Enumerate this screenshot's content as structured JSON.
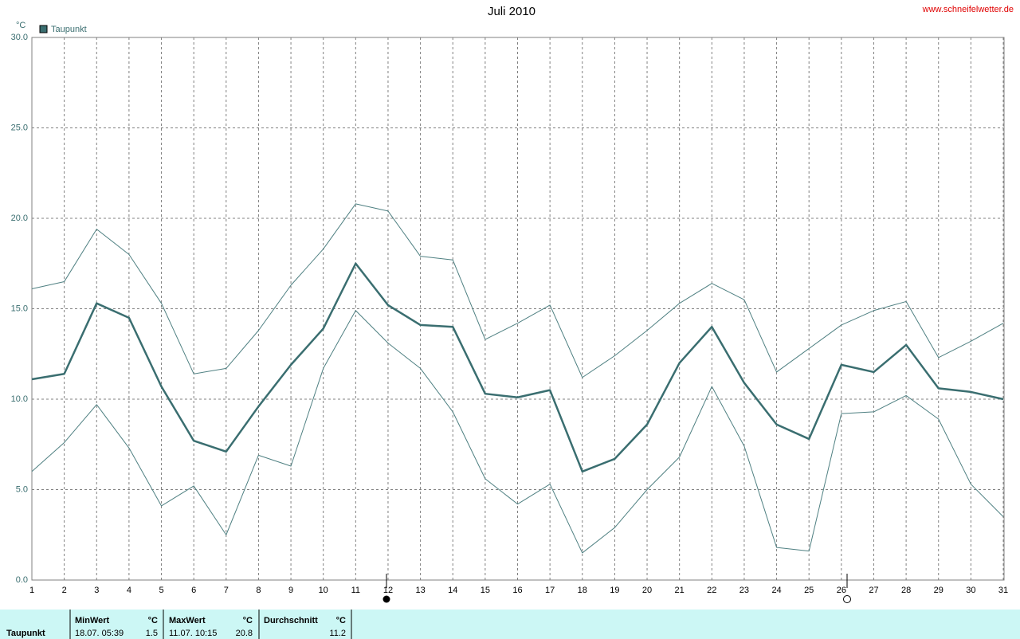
{
  "chart_data": {
    "type": "line",
    "title": "Juli 2010",
    "source": "www.schneifelwetter.de",
    "y_unit": "°C",
    "x": [
      1,
      2,
      3,
      4,
      5,
      6,
      7,
      8,
      9,
      10,
      11,
      12,
      13,
      14,
      15,
      16,
      17,
      18,
      19,
      20,
      21,
      22,
      23,
      24,
      25,
      26,
      27,
      28,
      29,
      30,
      31
    ],
    "xlim": [
      1,
      31
    ],
    "xticks": [
      1,
      2,
      3,
      4,
      5,
      6,
      7,
      8,
      9,
      10,
      11,
      12,
      13,
      14,
      15,
      16,
      17,
      18,
      19,
      20,
      21,
      22,
      23,
      24,
      25,
      26,
      27,
      28,
      29,
      30,
      31
    ],
    "ylim": [
      0,
      30
    ],
    "yticks": [
      {
        "value": 0,
        "label": "0.0"
      },
      {
        "value": 5,
        "label": "5.0"
      },
      {
        "value": 10,
        "label": "10.0"
      },
      {
        "value": 15,
        "label": "15.0"
      },
      {
        "value": 20,
        "label": "20.0"
      },
      {
        "value": 25,
        "label": "25.0"
      },
      {
        "value": 30,
        "label": "30.0"
      }
    ],
    "grid": true,
    "series": [
      {
        "name": "Taupunkt",
        "color": "#3a6e70",
        "values": [
          11.1,
          11.4,
          15.3,
          14.5,
          10.7,
          7.7,
          7.1,
          9.6,
          11.9,
          13.9,
          17.5,
          15.2,
          14.1,
          14.0,
          10.3,
          10.1,
          10.5,
          6.0,
          6.7,
          8.6,
          12.0,
          14.0,
          10.9,
          8.6,
          7.8,
          11.9,
          11.5,
          13.0,
          10.6,
          10.4,
          10.0
        ]
      },
      {
        "color": "#4f8082",
        "values": [
          16.1,
          16.5,
          19.4,
          18.0,
          15.3,
          11.4,
          11.7,
          13.8,
          16.3,
          18.3,
          20.8,
          20.4,
          17.9,
          17.7,
          13.3,
          14.2,
          15.2,
          11.2,
          12.4,
          13.8,
          15.3,
          16.4,
          15.5,
          11.5,
          12.8,
          14.1,
          14.9,
          15.4,
          12.3,
          13.2,
          14.2
        ]
      },
      {
        "color": "#4f8082",
        "values": [
          6.0,
          7.6,
          9.7,
          7.3,
          4.1,
          5.2,
          2.5,
          6.9,
          6.3,
          11.7,
          14.9,
          13.1,
          11.7,
          9.3,
          5.6,
          4.2,
          5.3,
          1.5,
          2.9,
          5.0,
          6.8,
          10.7,
          7.4,
          1.8,
          1.6,
          9.2,
          9.3,
          10.2,
          8.9,
          5.3,
          3.5
        ]
      }
    ]
  },
  "stats_table": {
    "row_label": "Taupunkt",
    "min": {
      "header": "MinWert",
      "unit": "°C",
      "time": "18.07.  05:39",
      "value": "1.5"
    },
    "max": {
      "header": "MaxWert",
      "unit": "°C",
      "time": "11.07.  10:15",
      "value": "20.8"
    },
    "avg": {
      "header": "Durchschnitt",
      "unit": "°C",
      "value": "11.2"
    }
  }
}
